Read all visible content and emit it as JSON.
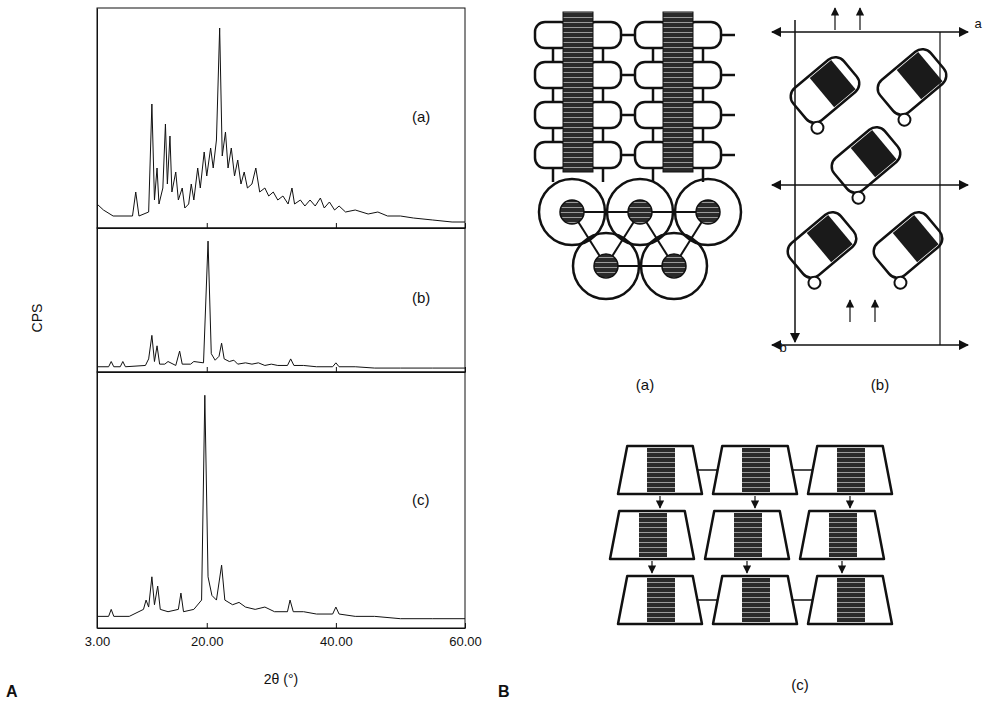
{
  "chart_data": [
    {
      "type": "line",
      "title": "(a)",
      "color": "#111111",
      "x": [
        3,
        4,
        5.5,
        8.5,
        9,
        9.5,
        11,
        11.5,
        11.9,
        12.3,
        12.6,
        13.2,
        13.6,
        13.9,
        14.3,
        14.6,
        15.2,
        15.6,
        16.2,
        16.6,
        17.2,
        17.6,
        18,
        18.6,
        19,
        19.6,
        20,
        20.6,
        21,
        21.5,
        22,
        22.4,
        22.9,
        23.3,
        23.8,
        24.3,
        24.8,
        25.3,
        25.8,
        26.3,
        27,
        27.6,
        28.2,
        29,
        29.6,
        30.3,
        31,
        31.8,
        32.6,
        33.2,
        33.6,
        34.5,
        35.2,
        36,
        36.8,
        37.6,
        38.2,
        39,
        39.8,
        40.5,
        41.5,
        43,
        45,
        46.5,
        48,
        50,
        52,
        55,
        58,
        60
      ],
      "values": [
        12,
        9,
        6,
        6,
        18,
        6,
        8,
        62,
        14,
        30,
        12,
        20,
        52,
        22,
        46,
        18,
        28,
        14,
        20,
        10,
        12,
        22,
        14,
        30,
        20,
        38,
        26,
        40,
        30,
        44,
        100,
        36,
        48,
        30,
        40,
        26,
        34,
        22,
        28,
        20,
        22,
        30,
        18,
        20,
        16,
        18,
        14,
        16,
        12,
        20,
        12,
        14,
        11,
        14,
        11,
        15,
        10,
        13,
        9,
        11,
        8,
        9,
        7,
        8,
        6,
        6,
        5,
        4,
        3,
        3
      ],
      "xlim": [
        3,
        60
      ],
      "xticks": [
        3,
        20,
        40,
        60
      ],
      "ylim": [
        0,
        110
      ],
      "tick_labels": false
    },
    {
      "type": "line",
      "title": "(b)",
      "color": "#111111",
      "y_label": "CPS",
      "x": [
        3,
        4.8,
        5.2,
        5.6,
        6.6,
        7,
        7.4,
        10.5,
        11,
        11.5,
        11.9,
        12.3,
        12.7,
        13.5,
        14,
        15.2,
        15.8,
        16.2,
        17.5,
        18,
        19.5,
        20.2,
        20.7,
        21.3,
        21.9,
        22.3,
        22.7,
        23.5,
        24.2,
        24.8,
        26,
        27,
        28,
        29,
        30,
        31,
        32.5,
        33,
        33.5,
        35,
        37,
        39.5,
        40,
        40.5,
        43,
        46,
        50,
        55,
        60
      ],
      "values": [
        4,
        4,
        8,
        4,
        4,
        8,
        4,
        5,
        10,
        28,
        8,
        20,
        6,
        6,
        8,
        5,
        16,
        6,
        6,
        8,
        7,
        100,
        14,
        9,
        12,
        22,
        10,
        8,
        9,
        6,
        7,
        6,
        7,
        5,
        6,
        5,
        5,
        10,
        5,
        5,
        4,
        4,
        7,
        4,
        4,
        3,
        3,
        3,
        3
      ],
      "xlim": [
        3,
        60
      ],
      "xticks": [
        3,
        20,
        40,
        60
      ],
      "ylim": [
        0,
        110
      ],
      "tick_labels": false
    },
    {
      "type": "line",
      "title": "(c)",
      "color": "#111111",
      "x_label": "2θ (°)",
      "x": [
        3,
        4.8,
        5.2,
        5.6,
        8,
        10.2,
        10.6,
        11,
        11.5,
        11.9,
        12.4,
        12.8,
        14,
        15.6,
        16,
        16.4,
        18,
        19.2,
        19.7,
        20.2,
        20.8,
        21.5,
        22.3,
        22.8,
        24,
        25,
        26,
        27.5,
        29,
        30.5,
        32.5,
        32.9,
        33.4,
        35,
        37,
        39.5,
        40,
        40.5,
        43,
        46,
        50,
        55,
        60
      ],
      "values": [
        5,
        5,
        8,
        5,
        5,
        8,
        12,
        9,
        22,
        10,
        18,
        8,
        7,
        8,
        15,
        7,
        8,
        12,
        100,
        22,
        14,
        12,
        27,
        12,
        10,
        11,
        9,
        8,
        9,
        7,
        7,
        12,
        7,
        7,
        6,
        6,
        9,
        6,
        5,
        5,
        4,
        4,
        4
      ],
      "xlim": [
        3,
        60
      ],
      "xticks": [
        {
          "value": 3,
          "label": "3.00"
        },
        {
          "value": 20,
          "label": "20.00"
        },
        {
          "value": 40,
          "label": "40.00"
        },
        {
          "value": 60,
          "label": "60.00"
        }
      ],
      "ylim": [
        0,
        110
      ],
      "tick_labels": "x"
    }
  ],
  "panels": [
    "A",
    "B"
  ],
  "diagram": {
    "labels": [
      "(a)",
      "(b)",
      "(c)"
    ],
    "axes": [
      "a",
      "b"
    ]
  }
}
